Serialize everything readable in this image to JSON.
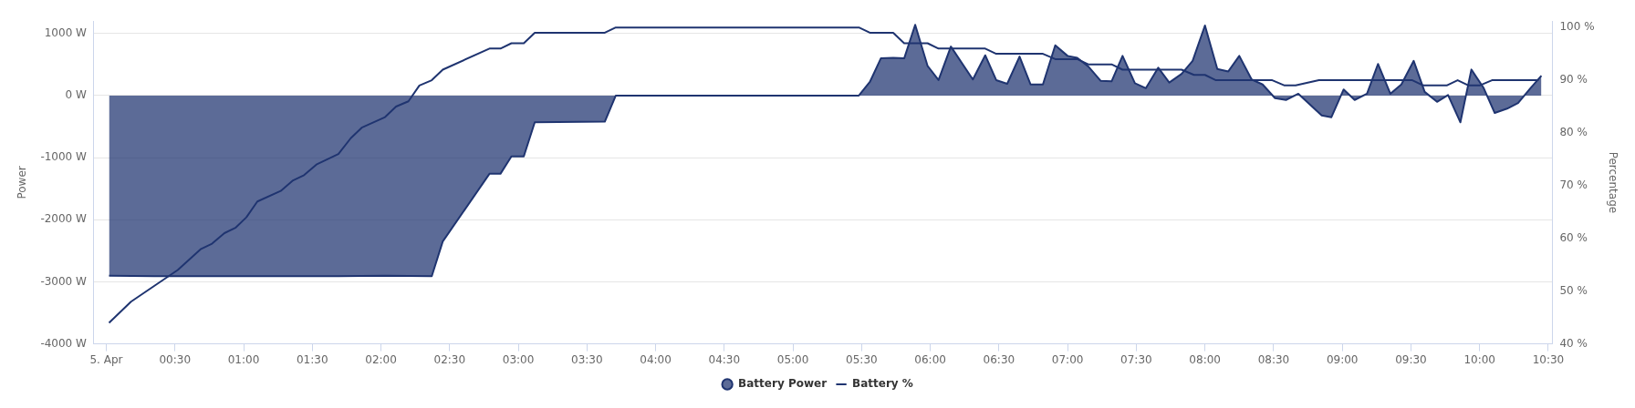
{
  "chart_data": {
    "type": "line",
    "ylabel": "Power",
    "y2label": "Percentage",
    "grid": "y",
    "legend": "bottom",
    "xlim": [
      -0.09,
      10.53
    ],
    "xticks": [
      {
        "value": 0,
        "label": "5. Apr"
      },
      {
        "value": 0.5,
        "label": "00:30"
      },
      {
        "value": 1,
        "label": "01:00"
      },
      {
        "value": 1.5,
        "label": "01:30"
      },
      {
        "value": 2,
        "label": "02:00"
      },
      {
        "value": 2.5,
        "label": "02:30"
      },
      {
        "value": 3,
        "label": "03:00"
      },
      {
        "value": 3.5,
        "label": "03:30"
      },
      {
        "value": 4,
        "label": "04:00"
      },
      {
        "value": 4.5,
        "label": "04:30"
      },
      {
        "value": 5,
        "label": "05:00"
      },
      {
        "value": 5.5,
        "label": "05:30"
      },
      {
        "value": 6,
        "label": "06:00"
      },
      {
        "value": 6.5,
        "label": "06:30"
      },
      {
        "value": 7,
        "label": "07:00"
      },
      {
        "value": 7.5,
        "label": "07:30"
      },
      {
        "value": 8,
        "label": "08:00"
      },
      {
        "value": 8.5,
        "label": "08:30"
      },
      {
        "value": 9,
        "label": "09:00"
      },
      {
        "value": 9.5,
        "label": "09:30"
      },
      {
        "value": 10,
        "label": "10:00"
      },
      {
        "value": 10.5,
        "label": "10:30"
      }
    ],
    "ylim": [
      -4000,
      1200
    ],
    "yticks": [
      {
        "value": -4000,
        "label": "-4000 W"
      },
      {
        "value": -3000,
        "label": "-3000 W"
      },
      {
        "value": -2000,
        "label": "-2000 W"
      },
      {
        "value": -1000,
        "label": "-1000 W"
      },
      {
        "value": 0,
        "label": "0 W"
      },
      {
        "value": 1000,
        "label": "1000 W"
      }
    ],
    "y2lim": [
      40,
      101.2
    ],
    "y2ticks": [
      {
        "value": 40,
        "label": "40 %"
      },
      {
        "value": 50,
        "label": "50 %"
      },
      {
        "value": 60,
        "label": "60 %"
      },
      {
        "value": 70,
        "label": "70 %"
      },
      {
        "value": 80,
        "label": "80 %"
      },
      {
        "value": 90,
        "label": "90 %"
      },
      {
        "value": 100,
        "label": "100 %"
      }
    ],
    "series": [
      {
        "name": "Battery Power",
        "type": "area",
        "color": "#1f3470",
        "x": [
          0.02,
          0.35,
          0.69,
          1.02,
          1.36,
          1.69,
          2.03,
          2.37,
          2.45,
          2.79,
          2.87,
          2.95,
          3.04,
          3.12,
          3.63,
          3.71,
          5.48,
          5.56,
          5.64,
          5.73,
          5.81,
          5.89,
          5.98,
          6.06,
          6.15,
          6.31,
          6.4,
          6.48,
          6.56,
          6.65,
          6.73,
          6.82,
          6.91,
          7.0,
          7.07,
          7.15,
          7.24,
          7.32,
          7.4,
          7.49,
          7.57,
          7.66,
          7.74,
          7.83,
          7.91,
          8.0,
          8.09,
          8.17,
          8.25,
          8.34,
          8.42,
          8.51,
          8.59,
          8.68,
          8.85,
          8.92,
          9.01,
          9.09,
          9.18,
          9.26,
          9.35,
          9.43,
          9.52,
          9.6,
          9.69,
          9.77,
          9.86,
          9.94,
          10.03,
          10.11,
          10.2,
          10.28,
          10.37,
          10.45
        ],
        "values": [
          -2900,
          -2910,
          -2910,
          -2910,
          -2910,
          -2910,
          -2900,
          -2910,
          -2350,
          -1260,
          -1260,
          -980,
          -980,
          -430,
          -420,
          0,
          0,
          220,
          600,
          610,
          600,
          1140,
          480,
          250,
          790,
          260,
          650,
          250,
          190,
          630,
          180,
          180,
          810,
          640,
          610,
          470,
          240,
          230,
          640,
          200,
          120,
          450,
          210,
          350,
          560,
          1130,
          430,
          390,
          640,
          260,
          180,
          -40,
          -70,
          30,
          -320,
          -350,
          100,
          -70,
          30,
          510,
          30,
          180,
          560,
          60,
          -100,
          10,
          -430,
          420,
          120,
          -280,
          -210,
          -120,
          120,
          320
        ]
      },
      {
        "name": "Battery %",
        "type": "line",
        "axis": "y2",
        "color": "#1f3470",
        "x": [
          0.02,
          0.18,
          0.52,
          0.69,
          0.77,
          0.86,
          0.94,
          1.02,
          1.1,
          1.27,
          1.36,
          1.44,
          1.53,
          1.69,
          1.78,
          1.86,
          2.03,
          2.11,
          2.2,
          2.28,
          2.37,
          2.45,
          2.79,
          2.87,
          2.95,
          3.04,
          3.12,
          3.63,
          3.71,
          5.48,
          5.56,
          5.73,
          5.81,
          5.98,
          6.06,
          6.4,
          6.48,
          6.82,
          6.91,
          7.07,
          7.15,
          7.32,
          7.4,
          7.83,
          7.92,
          8.0,
          8.08,
          8.49,
          8.58,
          8.66,
          8.83,
          9.51,
          9.59,
          9.76,
          9.84,
          9.92,
          10.0,
          10.09,
          10.43
        ],
        "values": [
          44,
          48,
          54,
          58,
          59,
          61,
          62,
          64,
          67,
          69,
          71,
          72,
          74,
          76,
          79,
          81,
          83,
          85,
          86,
          89,
          90,
          92,
          96,
          96,
          97,
          97,
          99,
          99,
          100,
          100,
          99,
          99,
          97,
          97,
          96,
          96,
          95,
          95,
          94,
          94,
          93,
          93,
          92,
          92,
          91,
          91,
          90,
          90,
          89,
          89,
          90,
          90,
          89,
          89,
          90,
          89,
          89,
          90,
          90
        ]
      }
    ]
  }
}
